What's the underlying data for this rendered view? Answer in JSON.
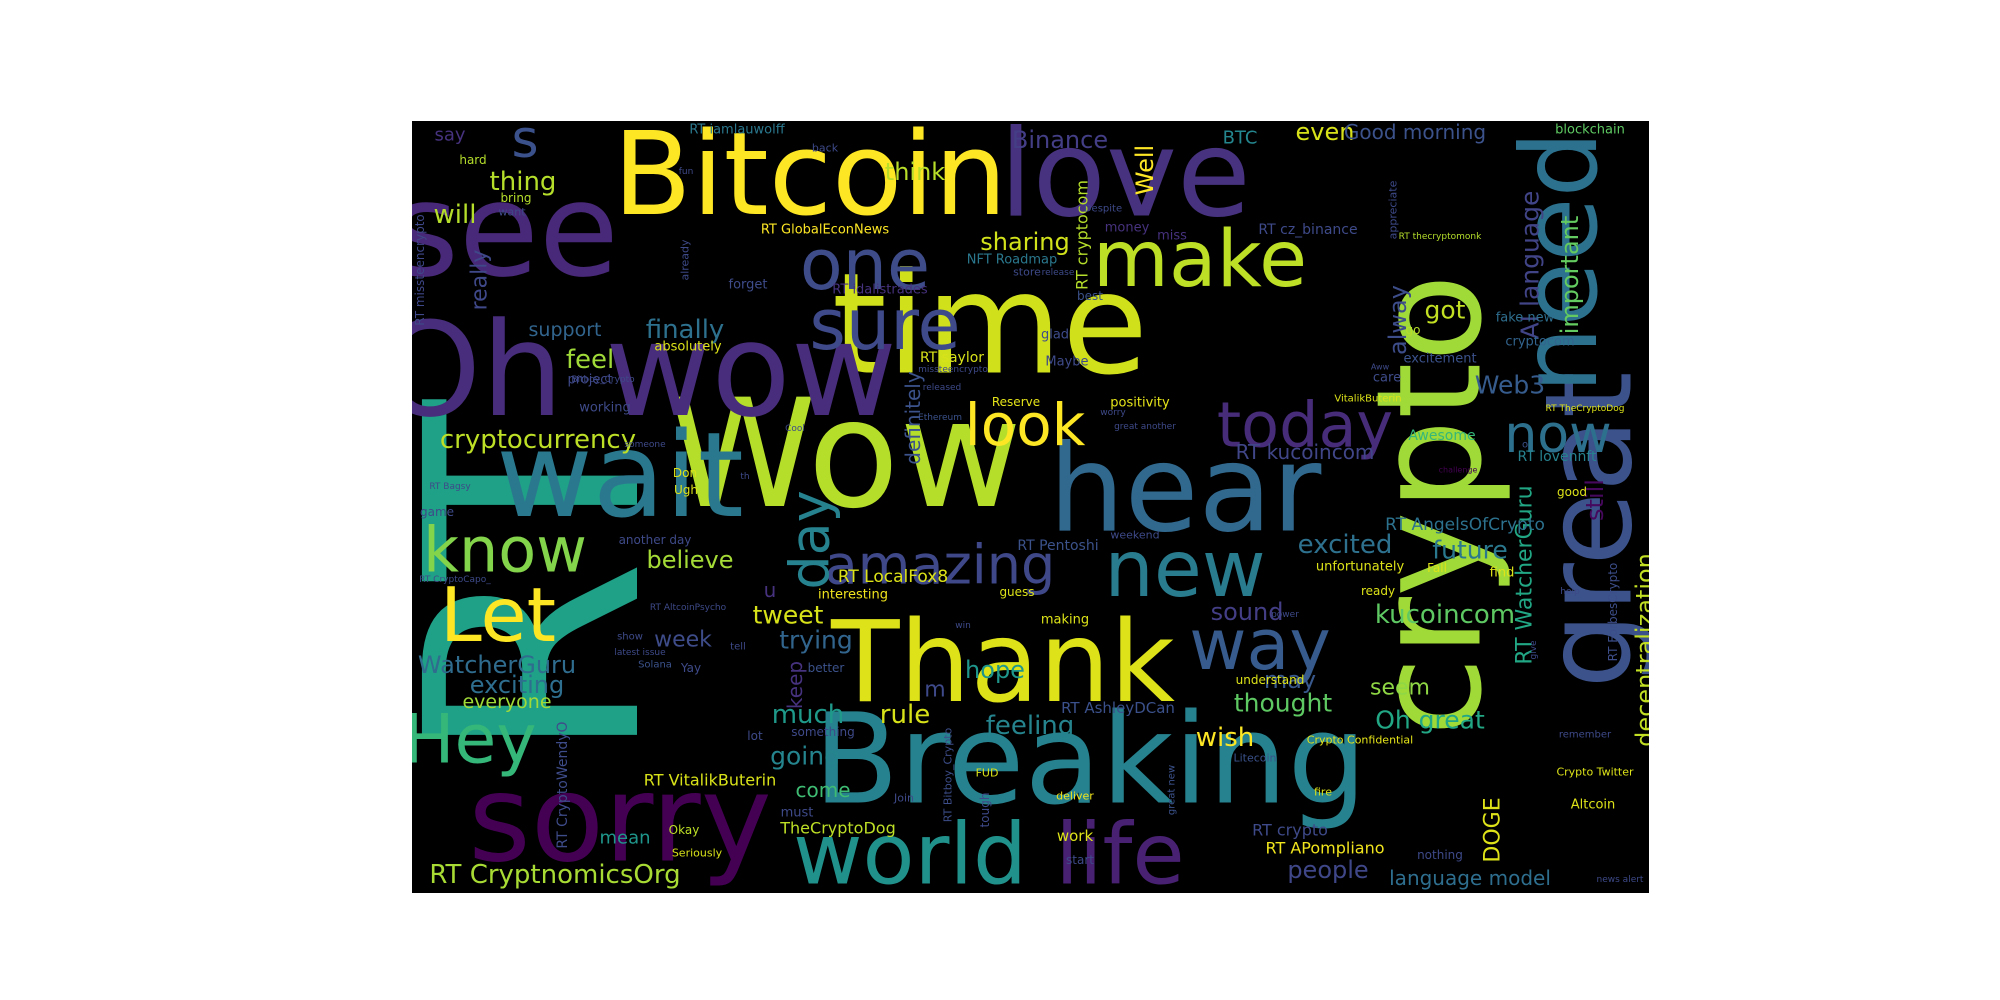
{
  "chart_data": {
    "type": "wordcloud",
    "background": "#000000",
    "colormap": "viridis",
    "words": [
      {
        "text": "RT",
        "weight": 1.0
      },
      {
        "text": "Wow",
        "weight": 0.62
      },
      {
        "text": "crypto",
        "weight": 0.62
      },
      {
        "text": "time",
        "weight": 0.6
      },
      {
        "text": "see",
        "weight": 0.55
      },
      {
        "text": "Oh wow",
        "weight": 0.55
      },
      {
        "text": "great",
        "weight": 0.52
      },
      {
        "text": "Bitcoin",
        "weight": 0.5
      },
      {
        "text": "love",
        "weight": 0.5
      },
      {
        "text": "need",
        "weight": 0.5
      },
      {
        "text": "Breaking",
        "weight": 0.5
      },
      {
        "text": "hear",
        "weight": 0.48
      },
      {
        "text": "Thank",
        "weight": 0.46
      },
      {
        "text": "sorry",
        "weight": 0.45
      },
      {
        "text": "wait",
        "weight": 0.42
      },
      {
        "text": "world",
        "weight": 0.34
      },
      {
        "text": "life",
        "weight": 0.34
      },
      {
        "text": "new",
        "weight": 0.3
      },
      {
        "text": "make",
        "weight": 0.3
      },
      {
        "text": "sure",
        "weight": 0.3
      },
      {
        "text": "one",
        "weight": 0.3
      },
      {
        "text": "way",
        "weight": 0.3
      },
      {
        "text": "Let",
        "weight": 0.3
      },
      {
        "text": "Hey",
        "weight": 0.28
      },
      {
        "text": "know",
        "weight": 0.28
      },
      {
        "text": "today",
        "weight": 0.28
      },
      {
        "text": "amazing",
        "weight": 0.25
      },
      {
        "text": "now",
        "weight": 0.25
      },
      {
        "text": "look",
        "weight": 0.25
      },
      {
        "text": "day",
        "weight": 0.25
      },
      {
        "text": "s",
        "weight": 0.22
      },
      {
        "text": "cryptocurrency",
        "weight": 0.13
      },
      {
        "text": "AI language",
        "weight": 0.12
      },
      {
        "text": "kucoincom",
        "weight": 0.13
      },
      {
        "text": "WatcherGuru",
        "weight": 0.12
      },
      {
        "text": "RT CryptnomicsOrg",
        "weight": 0.12
      },
      {
        "text": "decentralization",
        "weight": 0.12
      },
      {
        "text": "Web3",
        "weight": 0.12
      },
      {
        "text": "Binance",
        "weight": 0.12
      },
      {
        "text": "Well",
        "weight": 0.12
      },
      {
        "text": "finally",
        "weight": 0.12
      },
      {
        "text": "feel",
        "weight": 0.12
      },
      {
        "text": "sharing",
        "weight": 0.12
      },
      {
        "text": "think",
        "weight": 0.12
      },
      {
        "text": "thing",
        "weight": 0.12
      },
      {
        "text": "will",
        "weight": 0.12
      },
      {
        "text": "even",
        "weight": 0.12
      },
      {
        "text": "important",
        "weight": 0.11
      },
      {
        "text": "got",
        "weight": 0.12
      },
      {
        "text": "excited",
        "weight": 0.12
      },
      {
        "text": "future",
        "weight": 0.12
      },
      {
        "text": "believe",
        "weight": 0.11
      },
      {
        "text": "exciting",
        "weight": 0.12
      },
      {
        "text": "week",
        "weight": 0.11
      },
      {
        "text": "tweet",
        "weight": 0.12
      },
      {
        "text": "trying",
        "weight": 0.12
      },
      {
        "text": "much",
        "weight": 0.12
      },
      {
        "text": "rule",
        "weight": 0.12
      },
      {
        "text": "feeling",
        "weight": 0.12
      },
      {
        "text": "going",
        "weight": 0.12
      },
      {
        "text": "wish",
        "weight": 0.12
      },
      {
        "text": "thought",
        "weight": 0.12
      },
      {
        "text": "Oh great",
        "weight": 0.12
      },
      {
        "text": "sound",
        "weight": 0.12
      },
      {
        "text": "people",
        "weight": 0.12
      },
      {
        "text": "hope",
        "weight": 0.11
      },
      {
        "text": "may",
        "weight": 0.11
      },
      {
        "text": "seem",
        "weight": 0.11
      },
      {
        "text": "still",
        "weight": 0.11
      },
      {
        "text": "alway",
        "weight": 0.11
      },
      {
        "text": "really",
        "weight": 0.1
      },
      {
        "text": "RT WatcherGuru",
        "weight": 0.1
      },
      {
        "text": "DOGE",
        "weight": 0.1
      },
      {
        "text": "language model",
        "weight": 0.1
      },
      {
        "text": "keep",
        "weight": 0.1
      },
      {
        "text": "definitely",
        "weight": 0.09
      },
      {
        "text": "RT kucoincom",
        "weight": 0.09
      },
      {
        "text": "RT AngelsOfCrypto",
        "weight": 0.09
      },
      {
        "text": "everyone",
        "weight": 0.09
      },
      {
        "text": "come",
        "weight": 0.09
      },
      {
        "text": "mean",
        "weight": 0.09
      },
      {
        "text": "support",
        "weight": 0.09
      },
      {
        "text": "Good morning",
        "weight": 0.09
      },
      {
        "text": "BTC",
        "weight": 0.09
      },
      {
        "text": "RT VitalikButerin",
        "weight": 0.08
      },
      {
        "text": "TheCryptoDog",
        "weight": 0.08
      },
      {
        "text": "RT APompliano",
        "weight": 0.08
      },
      {
        "text": "RT cryptocom",
        "weight": 0.07
      },
      {
        "text": "say",
        "weight": 0.08
      },
      {
        "text": "RT crypto",
        "weight": 0.08
      },
      {
        "text": "work",
        "weight": 0.07
      },
      {
        "text": "RT LocalFox8",
        "weight": 0.07
      },
      {
        "text": "RT GlobalEconNews",
        "weight": 0.07
      },
      {
        "text": "RT saylor",
        "weight": 0.07
      },
      {
        "text": "RT AshleyDCan",
        "weight": 0.07
      },
      {
        "text": "RT Pentoshi",
        "weight": 0.07
      },
      {
        "text": "RT lovennft",
        "weight": 0.07
      },
      {
        "text": "RT cz_binance",
        "weight": 0.07
      },
      {
        "text": "RT iamlauwolff",
        "weight": 0.07
      },
      {
        "text": "RT idalistrades",
        "weight": 0.07
      },
      {
        "text": "RT missteencrypto",
        "weight": 0.06
      },
      {
        "text": "RT CryptoWendyO",
        "weight": 0.06
      },
      {
        "text": "RT ForbesCrypto",
        "weight": 0.06
      },
      {
        "text": "RT Bitboy_Crypto",
        "weight": 0.06
      },
      {
        "text": "NFT Roadmap",
        "weight": 0.06
      },
      {
        "text": "cryptocom",
        "weight": 0.07
      },
      {
        "text": "fake new",
        "weight": 0.07
      },
      {
        "text": "excitement",
        "weight": 0.07
      },
      {
        "text": "unfortunately",
        "weight": 0.07
      },
      {
        "text": "Awesome",
        "weight": 0.07
      },
      {
        "text": "interesting",
        "weight": 0.06
      },
      {
        "text": "positivity",
        "weight": 0.07
      },
      {
        "text": "absolutely",
        "weight": 0.06
      },
      {
        "text": "working",
        "weight": 0.06
      },
      {
        "text": "project",
        "weight": 0.06
      },
      {
        "text": "blockchain",
        "weight": 0.06
      },
      {
        "text": "Reserve",
        "weight": 0.06
      },
      {
        "text": "Maybe",
        "weight": 0.06
      },
      {
        "text": "glad",
        "weight": 0.06
      },
      {
        "text": "best",
        "weight": 0.06
      },
      {
        "text": "care",
        "weight": 0.06
      },
      {
        "text": "money",
        "weight": 0.06
      },
      {
        "text": "miss",
        "weight": 0.06
      },
      {
        "text": "forget",
        "weight": 0.06
      },
      {
        "text": "hard",
        "weight": 0.05
      },
      {
        "text": "bring",
        "weight": 0.05
      },
      {
        "text": "back",
        "weight": 0.05
      },
      {
        "text": "go",
        "weight": 0.05
      },
      {
        "text": "u",
        "weight": 0.08
      },
      {
        "text": "m",
        "weight": 0.08
      },
      {
        "text": "Don",
        "weight": 0.06
      },
      {
        "text": "Ugh",
        "weight": 0.06
      },
      {
        "text": "Okay",
        "weight": 0.06
      },
      {
        "text": "Seriously",
        "weight": 0.05
      },
      {
        "text": "another day",
        "weight": 0.05
      },
      {
        "text": "better",
        "weight": 0.05
      },
      {
        "text": "lot",
        "weight": 0.05
      },
      {
        "text": "something",
        "weight": 0.05
      },
      {
        "text": "guess",
        "weight": 0.05
      },
      {
        "text": "making",
        "weight": 0.06
      },
      {
        "text": "weekend",
        "weight": 0.05
      },
      {
        "text": "ready",
        "weight": 0.05
      },
      {
        "text": "find",
        "weight": 0.06
      },
      {
        "text": "good",
        "weight": 0.05
      },
      {
        "text": "Fall",
        "weight": 0.05
      },
      {
        "text": "understand",
        "weight": 0.05
      },
      {
        "text": "Crypto Confidential",
        "weight": 0.05
      },
      {
        "text": "Crypto Twitter",
        "weight": 0.05
      },
      {
        "text": "Altcoin",
        "weight": 0.05
      },
      {
        "text": "deliver",
        "weight": 0.05
      },
      {
        "text": "fire",
        "weight": 0.05
      },
      {
        "text": "Litecoin",
        "weight": 0.04
      },
      {
        "text": "FUD",
        "weight": 0.04
      },
      {
        "text": "Join",
        "weight": 0.04
      },
      {
        "text": "must",
        "weight": 0.05
      },
      {
        "text": "start",
        "weight": 0.05
      },
      {
        "text": "tough",
        "weight": 0.05
      },
      {
        "text": "game",
        "weight": 0.05
      },
      {
        "text": "RT CryptoCapo_",
        "weight": 0.04
      },
      {
        "text": "RT AltcoinPsycho",
        "weight": 0.04
      },
      {
        "text": "RT Bagsy",
        "weight": 0.04
      },
      {
        "text": "RT TheCryptoDog",
        "weight": 0.04
      },
      {
        "text": "RT thecryptomonk",
        "weight": 0.04
      },
      {
        "text": "VitalikButerin",
        "weight": 0.04
      },
      {
        "text": "missteencrypto",
        "weight": 0.04
      },
      {
        "text": "Bitboy_Crypto",
        "weight": 0.04
      },
      {
        "text": "Ethereum",
        "weight": 0.04
      },
      {
        "text": "released",
        "weight": 0.04
      },
      {
        "text": "latest issue",
        "weight": 0.04
      },
      {
        "text": "Solana",
        "weight": 0.04
      },
      {
        "text": "Yay",
        "weight": 0.04
      },
      {
        "text": "show",
        "weight": 0.04
      },
      {
        "text": "win",
        "weight": 0.04
      },
      {
        "text": "tell",
        "weight": 0.04
      },
      {
        "text": "help",
        "weight": 0.04
      },
      {
        "text": "power",
        "weight": 0.04
      },
      {
        "text": "remember",
        "weight": 0.04
      },
      {
        "text": "nothing",
        "weight": 0.05
      },
      {
        "text": "great new",
        "weight": 0.04
      },
      {
        "text": "great another",
        "weight": 0.04
      },
      {
        "text": "news alert",
        "weight": 0.04
      },
      {
        "text": "give",
        "weight": 0.03
      },
      {
        "text": "challenge",
        "weight": 0.03
      },
      {
        "text": "worry",
        "weight": 0.03
      },
      {
        "text": "Cool",
        "weight": 0.03
      },
      {
        "text": "someone",
        "weight": 0.03
      },
      {
        "text": "th",
        "weight": 0.03
      },
      {
        "text": "want",
        "weight": 0.04
      },
      {
        "text": "fun",
        "weight": 0.03
      },
      {
        "text": "already",
        "weight": 0.04
      },
      {
        "text": "appreciate",
        "weight": 0.04
      },
      {
        "text": "Despite",
        "weight": 0.04
      },
      {
        "text": "release",
        "weight": 0.03
      },
      {
        "text": "store",
        "weight": 0.04
      },
      {
        "text": "Aww",
        "weight": 0.03
      },
      {
        "text": "o",
        "weight": 0.03
      }
    ]
  }
}
